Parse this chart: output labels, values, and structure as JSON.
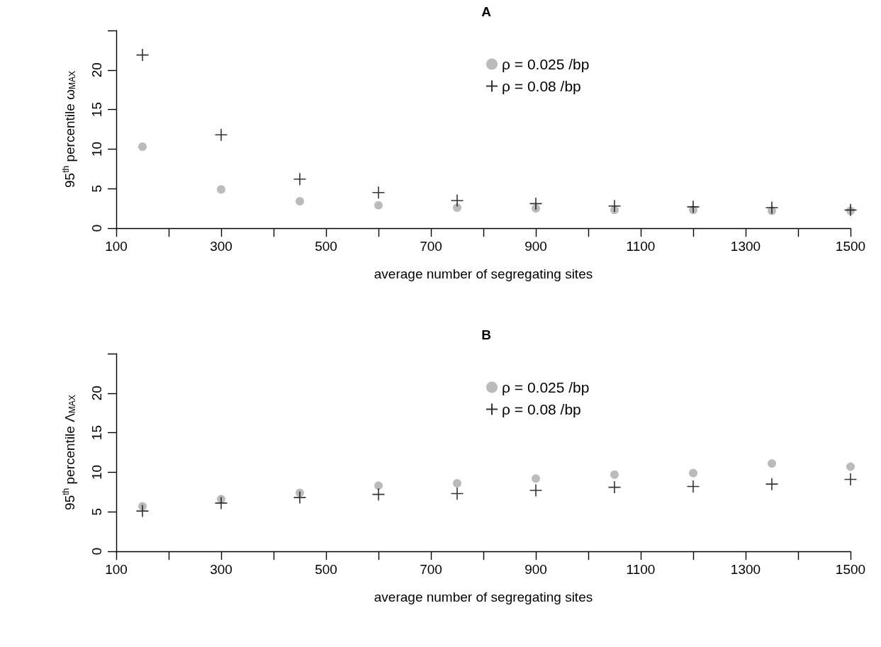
{
  "chart_data": [
    {
      "type": "scatter",
      "title": "A",
      "xlabel": "average number of segregating sites",
      "ylabel": "95$^{th}$ percentile ω$_{MAX}$",
      "x": [
        150,
        300,
        450,
        600,
        750,
        900,
        1050,
        1200,
        1350,
        1500
      ],
      "xlim": [
        100,
        1500
      ],
      "xticks": [
        100,
        {
          "value": 200,
          "label": null
        },
        300,
        {
          "value": 400,
          "label": null
        },
        500,
        {
          "value": 600,
          "label": null
        },
        700,
        {
          "value": 800,
          "label": null
        },
        900,
        {
          "value": 1000,
          "label": null
        },
        1100,
        {
          "value": 1200,
          "label": null
        },
        1300,
        {
          "value": 1400,
          "label": null
        },
        1500
      ],
      "ylim": [
        0,
        25
      ],
      "yticks": [
        0,
        5,
        10,
        15,
        20,
        {
          "value": 25,
          "label": null
        }
      ],
      "grid": false,
      "legend": "top right",
      "series": [
        {
          "name": "ρ = 0.025 /bp",
          "color": "#aaaaaa",
          "marker": "circle",
          "values": [
            10.3,
            4.9,
            3.4,
            2.9,
            2.6,
            2.5,
            2.3,
            2.3,
            2.2,
            2.2
          ]
        },
        {
          "name": "ρ = 0.08 /bp",
          "color": "#000000",
          "marker": "cross",
          "values": [
            21.9,
            11.8,
            6.2,
            4.5,
            3.5,
            3.1,
            2.8,
            2.7,
            2.6,
            2.3
          ]
        }
      ]
    },
    {
      "type": "scatter",
      "title": "B",
      "xlabel": "average number of segregating sites",
      "ylabel": "95$^{th}$ percentile Λ$_{MAX}$",
      "x": [
        150,
        300,
        450,
        600,
        750,
        900,
        1050,
        1200,
        1350,
        1500
      ],
      "xlim": [
        100,
        1500
      ],
      "xticks": [
        100,
        {
          "value": 200,
          "label": null
        },
        300,
        {
          "value": 400,
          "label": null
        },
        500,
        {
          "value": 600,
          "label": null
        },
        700,
        {
          "value": 800,
          "label": null
        },
        900,
        {
          "value": 1000,
          "label": null
        },
        1100,
        {
          "value": 1200,
          "label": null
        },
        1300,
        {
          "value": 1400,
          "label": null
        },
        1500
      ],
      "ylim": [
        0,
        25
      ],
      "yticks": [
        0,
        5,
        10,
        15,
        20,
        {
          "value": 25,
          "label": null
        }
      ],
      "grid": false,
      "legend": "top right",
      "series": [
        {
          "name": "ρ = 0.025 /bp",
          "color": "#aaaaaa",
          "marker": "circle",
          "values": [
            5.7,
            6.6,
            7.4,
            8.3,
            8.6,
            9.2,
            9.7,
            9.9,
            11.1,
            10.7
          ]
        },
        {
          "name": "ρ = 0.08 /bp",
          "color": "#000000",
          "marker": "cross",
          "values": [
            5.1,
            6.1,
            6.8,
            7.2,
            7.3,
            7.7,
            8.1,
            8.2,
            8.5,
            9.1
          ]
        }
      ]
    }
  ]
}
